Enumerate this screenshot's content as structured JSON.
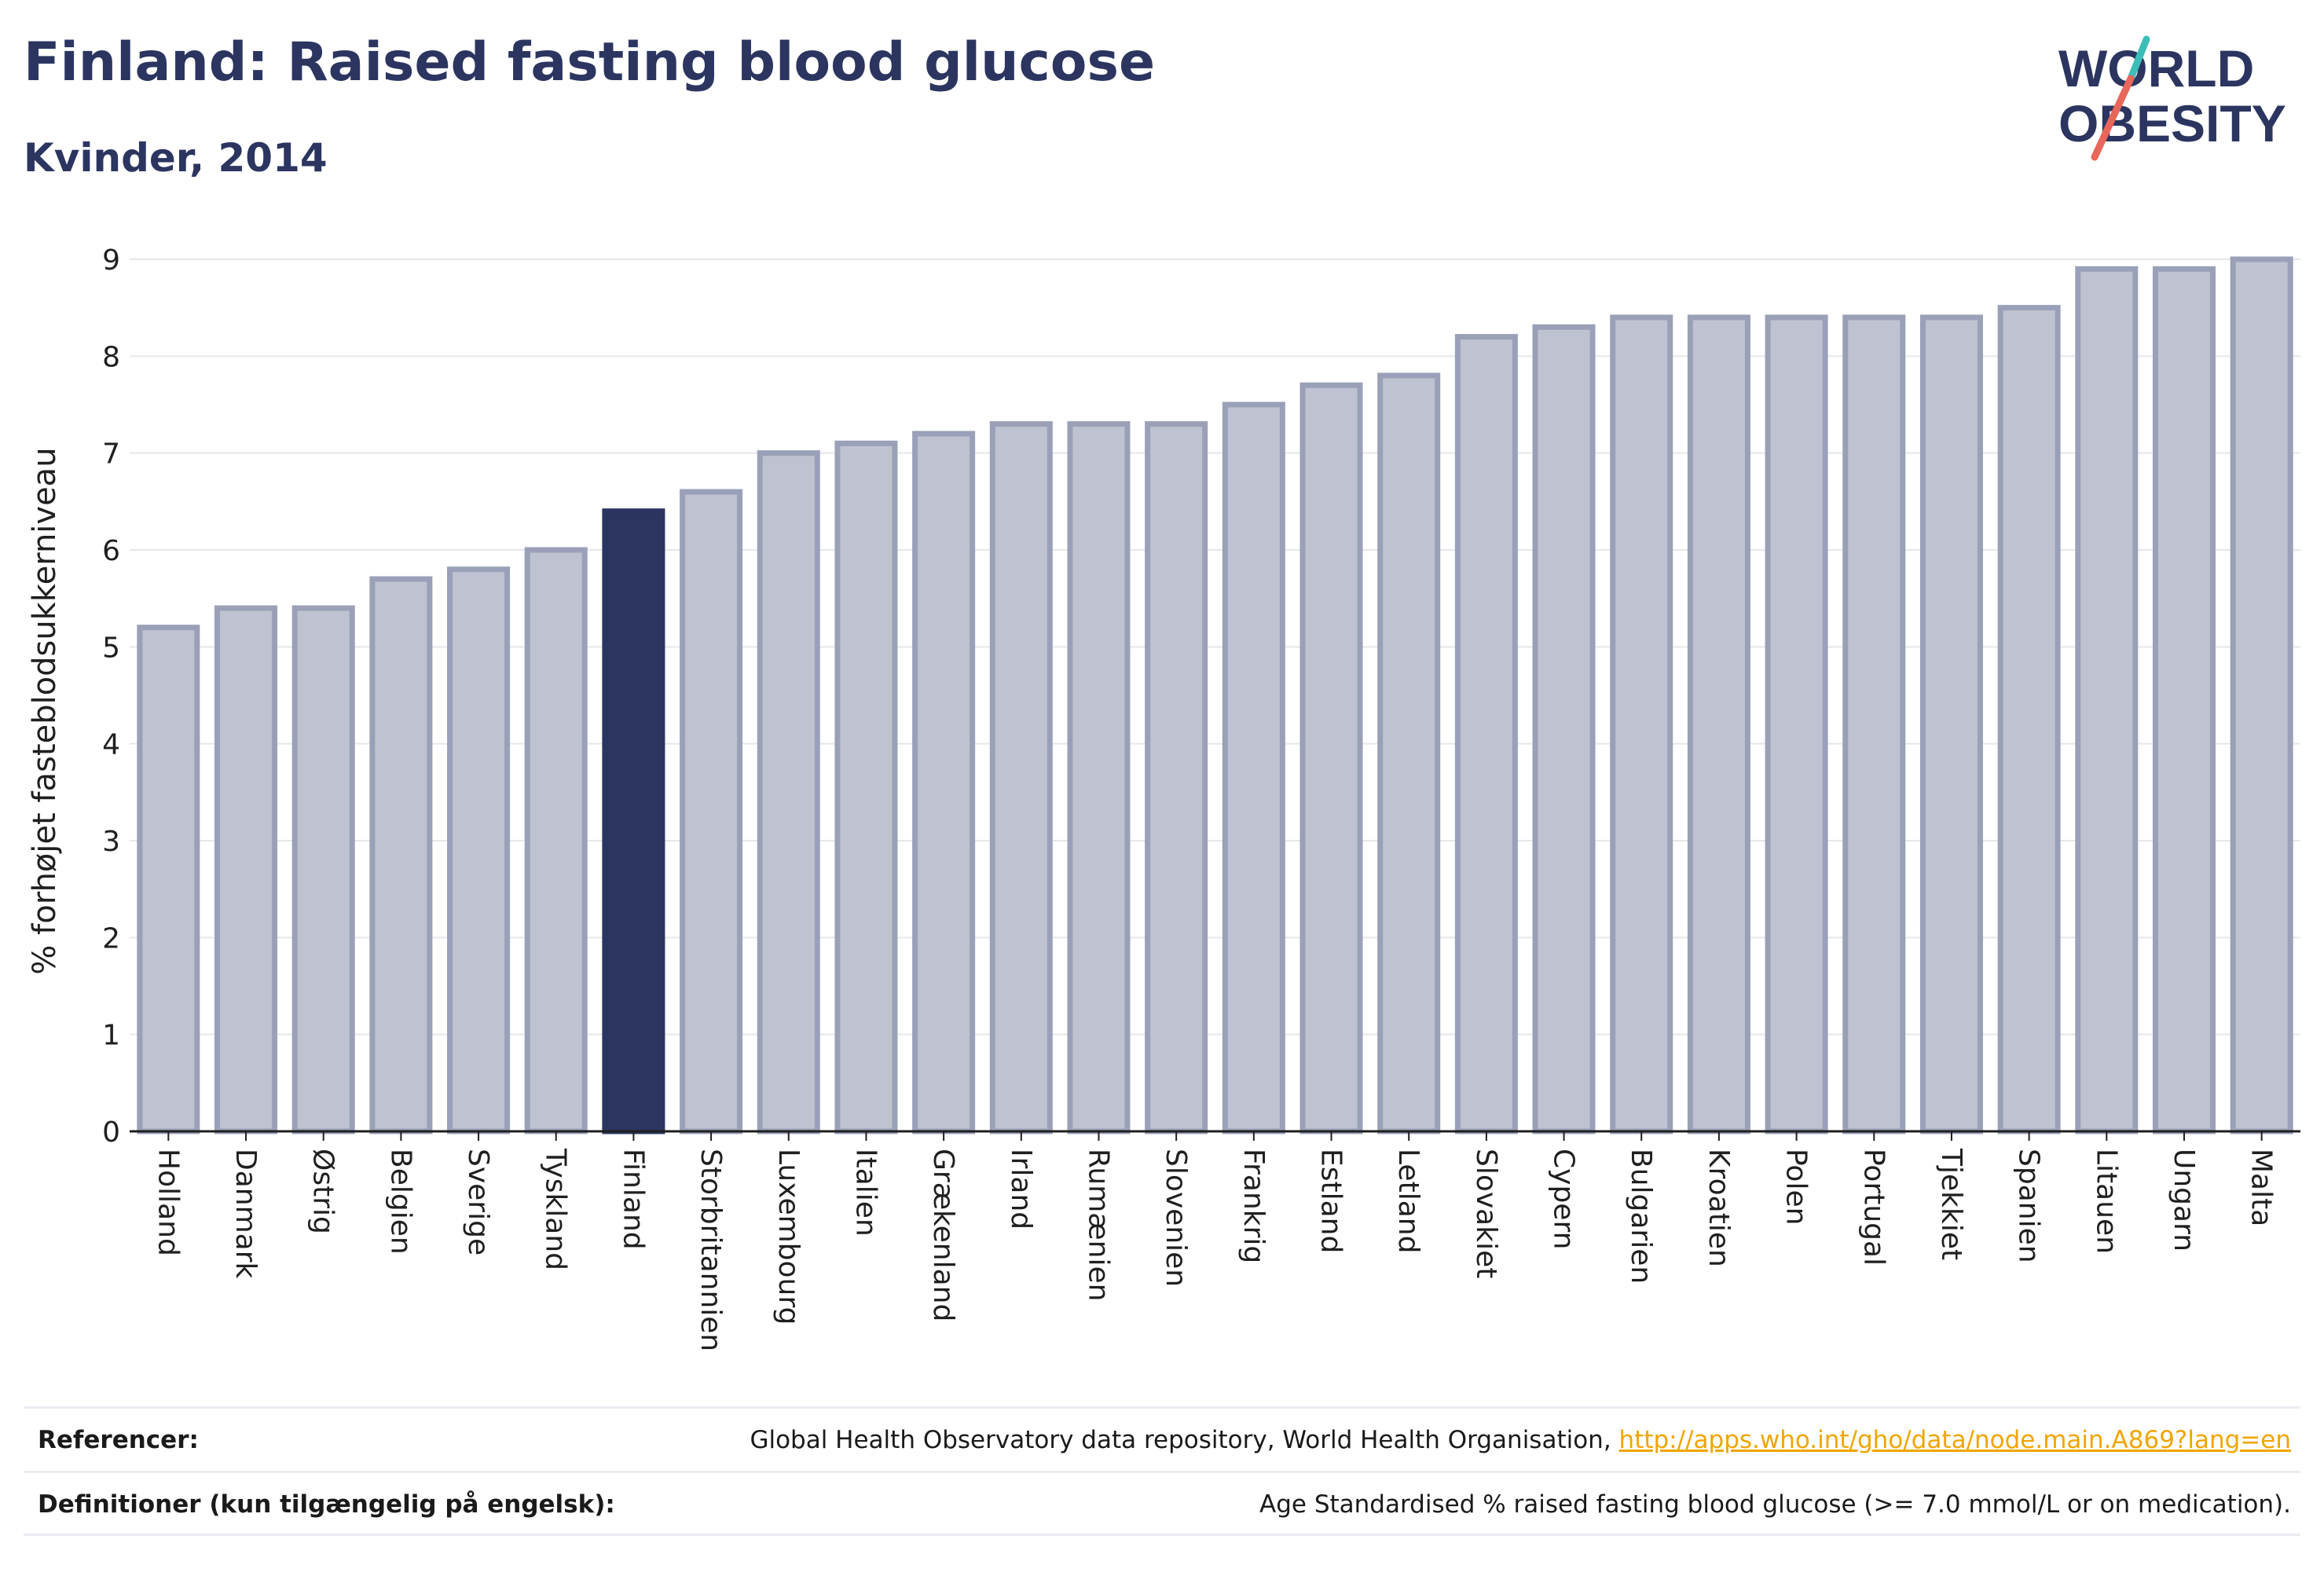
{
  "header": {
    "title": "Finland: Raised fasting blood glucose",
    "subtitle": "Kvinder, 2014"
  },
  "logo": {
    "line1": "WORLD",
    "line2": "OBESITY",
    "colors": {
      "text": "#2b3560",
      "slash_red": "#e8665a",
      "slash_teal": "#3dbdb8"
    }
  },
  "colors": {
    "bar_fill": "#bfc2d0",
    "bar_stroke": "#9aa0b7",
    "highlight": "#2b3560",
    "grid": "#e6e6ec",
    "axis": "#1f1f1f"
  },
  "chart_data": {
    "type": "bar",
    "ylabel": "% forhøjet fasteblodsukkerniveau",
    "xlabel": "",
    "ylim": [
      0,
      9
    ],
    "yticks": [
      0,
      1,
      2,
      3,
      4,
      5,
      6,
      7,
      8,
      9
    ],
    "grid": true,
    "highlight_category": "Finland",
    "categories": [
      "Holland",
      "Danmark",
      "Østrig",
      "Belgien",
      "Sverige",
      "Tyskland",
      "Finland",
      "Storbritannien",
      "Luxembourg",
      "Italien",
      "Grækenland",
      "Irland",
      "Rumænien",
      "Slovenien",
      "Frankrig",
      "Estland",
      "Letland",
      "Slovakiet",
      "Cypern",
      "Bulgarien",
      "Kroatien",
      "Polen",
      "Portugal",
      "Tjekkiet",
      "Spanien",
      "Litauen",
      "Ungarn",
      "Malta"
    ],
    "values": [
      5.2,
      5.4,
      5.4,
      5.7,
      5.8,
      6.0,
      6.4,
      6.6,
      7.0,
      7.1,
      7.2,
      7.3,
      7.3,
      7.3,
      7.5,
      7.7,
      7.8,
      8.2,
      8.3,
      8.4,
      8.4,
      8.4,
      8.4,
      8.4,
      8.5,
      8.9,
      8.9,
      9.0
    ]
  },
  "references": {
    "ref_label": "Referencer:",
    "ref_text": "Global Health Observatory data repository, World Health Organisation, ",
    "ref_link": "http://apps.who.int/gho/data/node.main.A869?lang=en",
    "def_label": "Definitioner (kun tilgængelig på engelsk):",
    "def_text": "Age Standardised % raised fasting blood glucose (>= 7.0 mmol/L or on medication)."
  }
}
